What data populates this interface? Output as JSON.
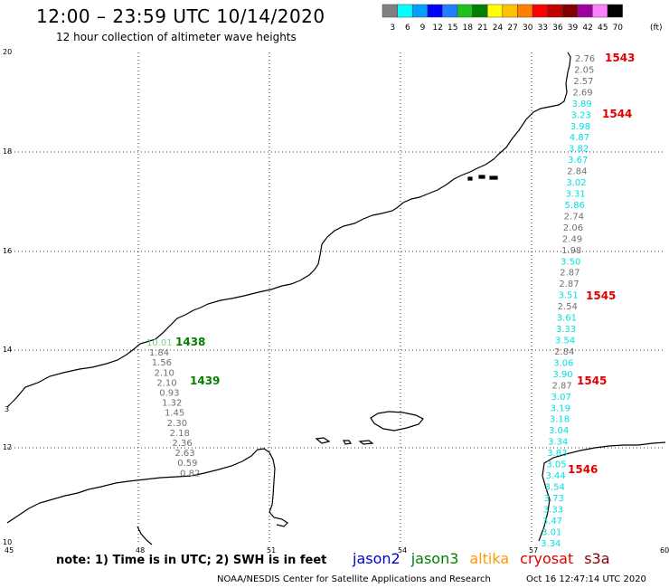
{
  "header": {
    "title": "12:00 – 23:59 UTC 10/14/2020",
    "subtitle": "12 hour collection of altimeter wave heights"
  },
  "colorbar": {
    "unit": "(ft)",
    "colors": [
      "#808080",
      "#00ffff",
      "#00a0ff",
      "#0000ff",
      "#2080ff",
      "#20c020",
      "#008000",
      "#ffff00",
      "#ffc000",
      "#ff8000",
      "#ff0000",
      "#c00000",
      "#800000",
      "#a000a0",
      "#ff80ff",
      "#000000"
    ],
    "labels": [
      "3",
      "6",
      "9",
      "12",
      "15",
      "18",
      "21",
      "24",
      "27",
      "30",
      "33",
      "36",
      "39",
      "42",
      "45",
      "70"
    ]
  },
  "axes": {
    "x_ticks": [
      "45",
      "48",
      "51",
      "54",
      "57",
      "60"
    ],
    "y_ticks": [
      "20",
      "18",
      "16",
      "14",
      "12",
      "10"
    ],
    "left_edge_label": "3"
  },
  "tracks": [
    {
      "satellite": "jason3",
      "label_color": "#008000",
      "time_labels": [
        {
          "text": "1438",
          "index": 0
        },
        {
          "text": "1439",
          "index": 5
        }
      ],
      "points": [
        {
          "v": "10.01",
          "c": "#80d080"
        },
        {
          "v": "1.84",
          "c": "#707070"
        },
        {
          "v": "1.56",
          "c": "#707070"
        },
        {
          "v": "2.10",
          "c": "#707070"
        },
        {
          "v": "2.10",
          "c": "#707070"
        },
        {
          "v": "0.93",
          "c": "#707070"
        },
        {
          "v": "1.32",
          "c": "#707070"
        },
        {
          "v": "1.45",
          "c": "#707070"
        },
        {
          "v": "2.30",
          "c": "#707070"
        },
        {
          "v": "2.18",
          "c": "#707070"
        },
        {
          "v": "2.36",
          "c": "#707070"
        },
        {
          "v": "2.63",
          "c": "#707070"
        },
        {
          "v": "0.59",
          "c": "#707070"
        },
        {
          "v": "0.82",
          "c": "#707070"
        }
      ]
    },
    {
      "satellite": "cryosat",
      "label_color": "#e00000",
      "time_labels": [
        {
          "text": "1543",
          "index": 0
        },
        {
          "text": "1544",
          "index": 6
        },
        {
          "text": "1545",
          "index": 24
        },
        {
          "text": "1545",
          "index": 33
        },
        {
          "text": "1546",
          "index": 42
        }
      ],
      "points": [
        {
          "v": "2.76",
          "c": "#707070"
        },
        {
          "v": "2.05",
          "c": "#707070"
        },
        {
          "v": "2.57",
          "c": "#707070"
        },
        {
          "v": "2.69",
          "c": "#707070"
        },
        {
          "v": "3.89",
          "c": "#00e0e0"
        },
        {
          "v": "3.23",
          "c": "#00e0e0"
        },
        {
          "v": "3.98",
          "c": "#00e0e0"
        },
        {
          "v": "4.87",
          "c": "#00e0e0"
        },
        {
          "v": "3.82",
          "c": "#00e0e0"
        },
        {
          "v": "3.67",
          "c": "#00e0e0"
        },
        {
          "v": "2.84",
          "c": "#707070"
        },
        {
          "v": "3.02",
          "c": "#00e0e0"
        },
        {
          "v": "3.31",
          "c": "#00e0e0"
        },
        {
          "v": "5.86",
          "c": "#00e0e0"
        },
        {
          "v": "2.74",
          "c": "#707070"
        },
        {
          "v": "2.06",
          "c": "#707070"
        },
        {
          "v": "2.49",
          "c": "#707070"
        },
        {
          "v": "1.98",
          "c": "#707070"
        },
        {
          "v": "3.50",
          "c": "#00e0e0"
        },
        {
          "v": "2.87",
          "c": "#707070"
        },
        {
          "v": "2.87",
          "c": "#707070"
        },
        {
          "v": "3.51",
          "c": "#00e0e0"
        },
        {
          "v": "2.54",
          "c": "#707070"
        },
        {
          "v": "3.61",
          "c": "#00e0e0"
        },
        {
          "v": "3.33",
          "c": "#00e0e0"
        },
        {
          "v": "3.54",
          "c": "#00e0e0"
        },
        {
          "v": "2.84",
          "c": "#707070"
        },
        {
          "v": "3.06",
          "c": "#00e0e0"
        },
        {
          "v": "3.90",
          "c": "#00e0e0"
        },
        {
          "v": "2.87",
          "c": "#707070"
        },
        {
          "v": "3.07",
          "c": "#00e0e0"
        },
        {
          "v": "3.19",
          "c": "#00e0e0"
        },
        {
          "v": "3.18",
          "c": "#00e0e0"
        },
        {
          "v": "3.04",
          "c": "#00e0e0"
        },
        {
          "v": "3.34",
          "c": "#00e0e0"
        },
        {
          "v": "3.83",
          "c": "#00e0e0"
        },
        {
          "v": "3.05",
          "c": "#00e0e0"
        },
        {
          "v": "3.44",
          "c": "#00e0e0"
        },
        {
          "v": "3.54",
          "c": "#00e0e0"
        },
        {
          "v": "3.73",
          "c": "#00e0e0"
        },
        {
          "v": "3.33",
          "c": "#00e0e0"
        },
        {
          "v": "3.47",
          "c": "#00e0e0"
        },
        {
          "v": "3.01",
          "c": "#00e0e0"
        },
        {
          "v": "3.34",
          "c": "#00e0e0"
        }
      ]
    }
  ],
  "footer": {
    "note": "note: 1) Time is in UTC; 2) SWH is in feet",
    "legend": [
      {
        "name": "jason2",
        "color": "#0000cc"
      },
      {
        "name": "jason3",
        "color": "#008000"
      },
      {
        "name": "altika",
        "color": "#ff9900"
      },
      {
        "name": "cryosat",
        "color": "#e00000"
      },
      {
        "name": "s3a",
        "color": "#800000"
      }
    ],
    "credit": "NOAA/NESDIS Center for Satellite Applications and Research",
    "timestamp": "Oct 16 12:47:14 UTC 2020"
  }
}
